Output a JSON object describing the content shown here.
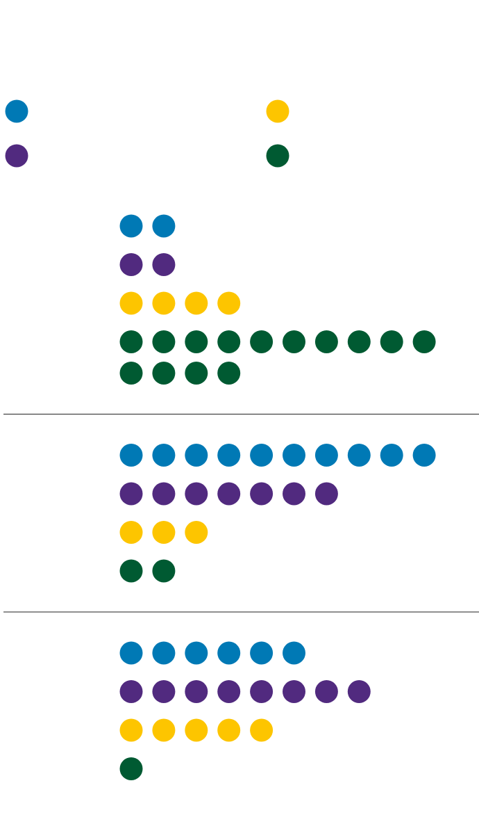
{
  "chart_data": {
    "type": "unit",
    "max_per_row": 10,
    "series": [
      {
        "color": "#0079b5",
        "values": [
          2,
          10,
          6
        ]
      },
      {
        "color": "#512a7f",
        "values": [
          2,
          7,
          8
        ]
      },
      {
        "color": "#fdc500",
        "values": [
          4,
          3,
          5
        ]
      },
      {
        "color": "#005a32",
        "values": [
          14,
          2,
          1
        ]
      }
    ]
  }
}
